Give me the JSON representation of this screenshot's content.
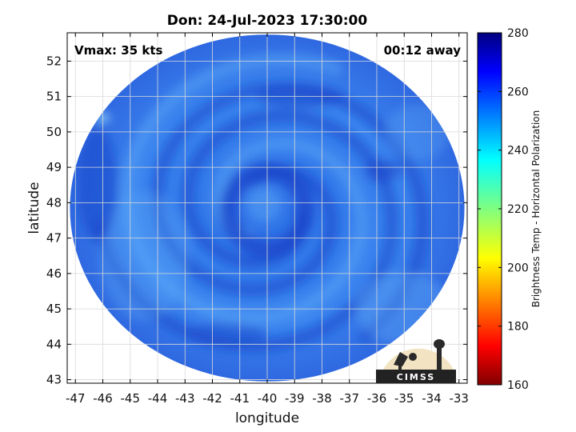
{
  "chart_data": {
    "type": "heatmap",
    "title": "Don: 24-Jul-2023 17:30:00",
    "xlabel": "longitude",
    "ylabel": "latitude",
    "xlim": [
      -47.3,
      -32.7
    ],
    "ylim": [
      42.9,
      52.8
    ],
    "x_ticks": [
      -47,
      -46,
      -45,
      -44,
      -43,
      -42,
      -41,
      -40,
      -39,
      -38,
      -37,
      -36,
      -35,
      -34,
      -33
    ],
    "y_ticks": [
      43,
      44,
      45,
      46,
      47,
      48,
      49,
      50,
      51,
      52
    ],
    "grid": true,
    "annotations": {
      "vmax": "Vmax: 35 kts",
      "time_away": "00:12 away"
    },
    "colorbar": {
      "label": "Brightness Temp - Horizontal Polarization",
      "range": [
        160,
        280
      ],
      "ticks": [
        160,
        180,
        200,
        220,
        240,
        260,
        280
      ],
      "colormap": "jet"
    },
    "swath": {
      "center_lon": -40.0,
      "center_lat": 47.85,
      "radius_lat": 4.9,
      "radius_lon": 7.2
    },
    "storm_center": {
      "lon": -40.0,
      "lat": 47.8
    },
    "logo": "CIMSS"
  },
  "colors": {
    "swath_base": "#3a82ee",
    "swath_dark": "#1a44c8",
    "swath_light": "#5aa6f6",
    "grid": "#d9d9d9"
  }
}
